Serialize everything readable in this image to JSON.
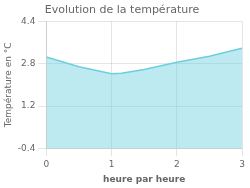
{
  "chart_data": {
    "type": "area",
    "title": "Evolution de la température",
    "x_label": "heure par heure",
    "y_label": "Température en °C",
    "x": [
      0,
      0.5,
      1.0,
      1.15,
      1.5,
      2.0,
      2.5,
      3.0
    ],
    "values": [
      3.05,
      2.68,
      2.42,
      2.44,
      2.58,
      2.85,
      3.08,
      3.38
    ],
    "color": "#6ccfdf",
    "xlim": [
      0,
      3
    ],
    "ylim": [
      -0.4,
      4.4
    ],
    "xticks": [
      0,
      1,
      2,
      3
    ],
    "yticks": [
      -0.4,
      1.2,
      2.8,
      4.4
    ],
    "grid": true
  }
}
